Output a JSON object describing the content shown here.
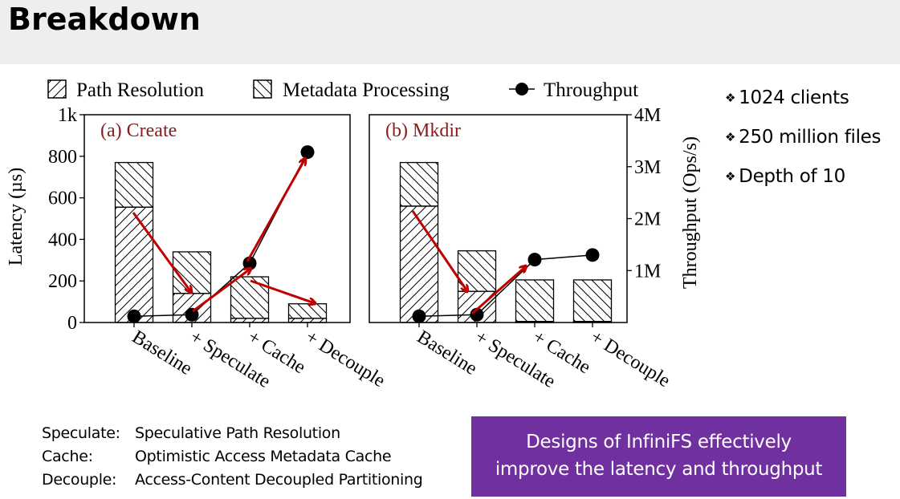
{
  "slide": {
    "title": "Breakdown"
  },
  "bullets": [
    "1024 clients",
    "250 million files",
    "Depth of 10"
  ],
  "glossary": [
    {
      "term": "Speculate:",
      "definition": "Speculative Path Resolution"
    },
    {
      "term": "Cache:",
      "definition": "Optimistic Access Metadata Cache"
    },
    {
      "term": "Decouple:",
      "definition": "Access-Content Decoupled Partitioning"
    }
  ],
  "callout": {
    "line1": "Designs of InfiniFS effectively",
    "line2": "improve the latency and throughput"
  },
  "colors": {
    "arrow": "#c00000",
    "panel_label": "#8b1a1a",
    "callout_bg": "#7030a0",
    "title_bar": "#eeeeee"
  },
  "chart_data": {
    "type": "bar",
    "legend": [
      "Path Resolution",
      "Metadata Processing",
      "Throughput"
    ],
    "ylabel_left": "Latency (µs)",
    "ylabel_right": "Throughput (Ops/s)",
    "ylim_left": [
      0,
      1000
    ],
    "yticks_left": [
      {
        "value": 0,
        "label": "0"
      },
      {
        "value": 200,
        "label": "200"
      },
      {
        "value": 400,
        "label": "400"
      },
      {
        "value": 600,
        "label": "600"
      },
      {
        "value": 800,
        "label": "800"
      },
      {
        "value": 1000,
        "label": "1k"
      }
    ],
    "ylim_right": [
      0,
      4000000
    ],
    "yticks_right": [
      {
        "value": 1000000,
        "label": "1M"
      },
      {
        "value": 2000000,
        "label": "2M"
      },
      {
        "value": 3000000,
        "label": "3M"
      },
      {
        "value": 4000000,
        "label": "4M"
      }
    ],
    "categories": [
      "Baseline",
      "+ Speculate",
      "+ Cache",
      "+ Decouple"
    ],
    "panels": [
      {
        "label": "(a) Create",
        "series": [
          {
            "name": "Path Resolution",
            "values": [
              555,
              140,
              20,
              20
            ]
          },
          {
            "name": "Metadata Processing",
            "values": [
              215,
              200,
              200,
              70
            ]
          },
          {
            "name": "Throughput",
            "values": [
              120000,
              150000,
              1140000,
              3280000
            ]
          }
        ]
      },
      {
        "label": "(b) Mkdir",
        "series": [
          {
            "name": "Path Resolution",
            "values": [
              560,
              150,
              5,
              5
            ]
          },
          {
            "name": "Metadata Processing",
            "values": [
              210,
              195,
              200,
              200
            ]
          },
          {
            "name": "Throughput",
            "values": [
              120000,
              150000,
              1210000,
              1300000
            ]
          }
        ]
      }
    ]
  }
}
